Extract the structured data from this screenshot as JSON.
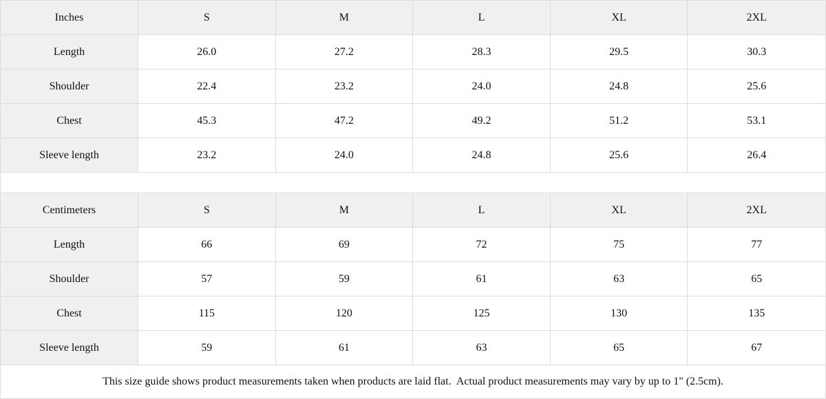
{
  "theme": {
    "header_bg": "#f0f0f0",
    "cell_bg": "#ffffff",
    "border_color": "#dcdcdc",
    "text_color": "#111111"
  },
  "size_guide": {
    "tables": [
      {
        "unit_label": "Inches",
        "sizes": [
          "S",
          "M",
          "L",
          "XL",
          "2XL"
        ],
        "rows": [
          {
            "label": "Length",
            "values": [
              "26.0",
              "27.2",
              "28.3",
              "29.5",
              "30.3"
            ]
          },
          {
            "label": "Shoulder",
            "values": [
              "22.4",
              "23.2",
              "24.0",
              "24.8",
              "25.6"
            ]
          },
          {
            "label": "Chest",
            "values": [
              "45.3",
              "47.2",
              "49.2",
              "51.2",
              "53.1"
            ]
          },
          {
            "label": "Sleeve length",
            "values": [
              "23.2",
              "24.0",
              "24.8",
              "25.6",
              "26.4"
            ]
          }
        ]
      },
      {
        "unit_label": "Centimeters",
        "sizes": [
          "S",
          "M",
          "L",
          "XL",
          "2XL"
        ],
        "rows": [
          {
            "label": "Length",
            "values": [
              "66",
              "69",
              "72",
              "75",
              "77"
            ]
          },
          {
            "label": "Shoulder",
            "values": [
              "57",
              "59",
              "61",
              "63",
              "65"
            ]
          },
          {
            "label": "Chest",
            "values": [
              "115",
              "120",
              "125",
              "130",
              "135"
            ]
          },
          {
            "label": "Sleeve length",
            "values": [
              "59",
              "61",
              "63",
              "65",
              "67"
            ]
          }
        ]
      }
    ],
    "footnote": "This size guide shows product measurements taken when products are laid flat.  Actual product measurements may vary by up to 1\" (2.5cm)."
  }
}
